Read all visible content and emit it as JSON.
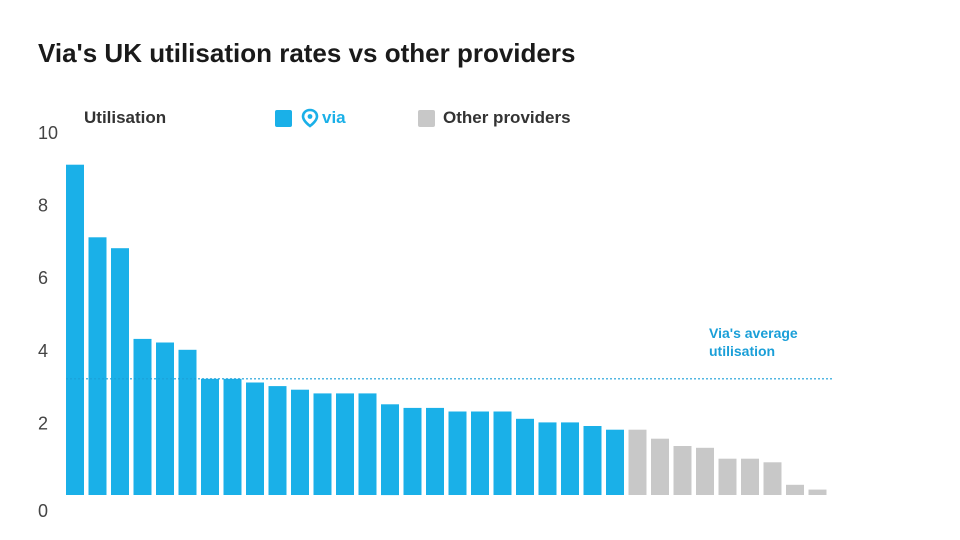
{
  "title": "Via's UK utilisation rates vs other providers",
  "chart_data": {
    "type": "bar",
    "ylabel": "Utilisation",
    "ylim": [
      0,
      10
    ],
    "yticks": [
      "0",
      "2",
      "4",
      "6",
      "8",
      "10"
    ],
    "legend": [
      {
        "name": "via",
        "color": "#1ab0e8"
      },
      {
        "name": "Other providers",
        "color": "#c8c8c8"
      }
    ],
    "series": [
      {
        "name": "via",
        "color": "#1ab0e8",
        "values": [
          9.1,
          7.1,
          6.8,
          4.3,
          4.2,
          4.0,
          3.2,
          3.2,
          3.1,
          3.0,
          2.9,
          2.8,
          2.8,
          2.8,
          2.5,
          2.4,
          2.4,
          2.3,
          2.3,
          2.3,
          2.1,
          2.0,
          2.0,
          1.9,
          1.8
        ]
      },
      {
        "name": "Other providers",
        "color": "#c8c8c8",
        "values": [
          1.8,
          1.55,
          1.35,
          1.3,
          1.0,
          1.0,
          0.9,
          0.28,
          0.15
        ]
      }
    ],
    "average_line": {
      "value": 3.2,
      "label_line1": "Via's average",
      "label_line2": "utilisation",
      "color": "#1a9fd8"
    },
    "grid": false
  }
}
